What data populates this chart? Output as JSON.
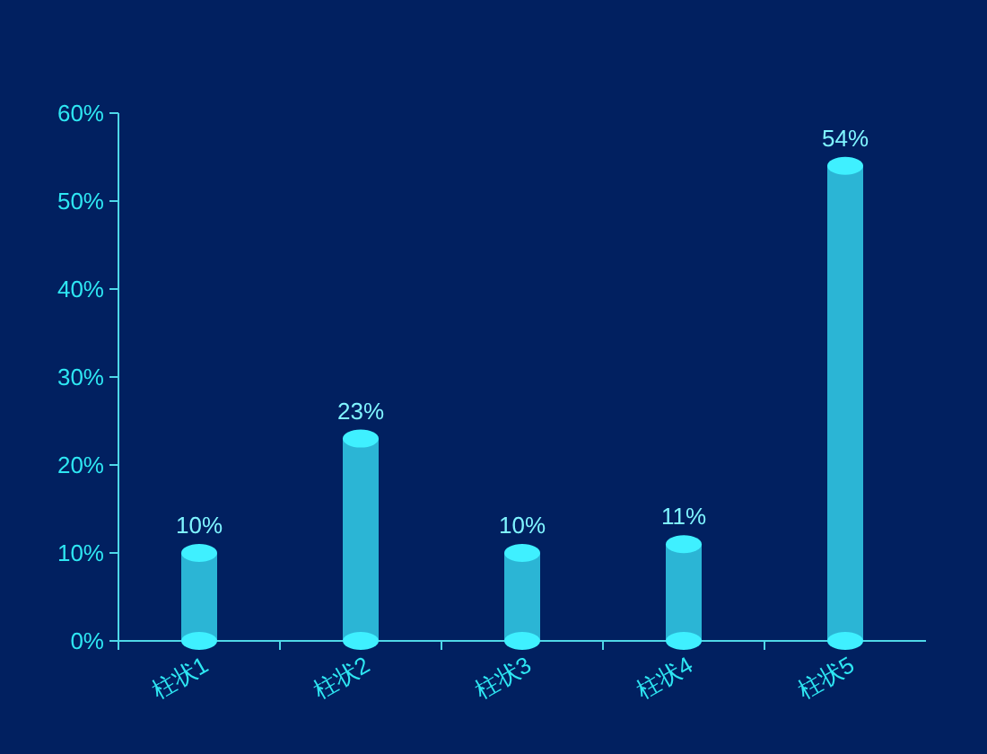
{
  "chart_data": {
    "type": "bar",
    "categories": [
      "柱状1",
      "柱状2",
      "柱状3",
      "柱状4",
      "柱状5"
    ],
    "values": [
      10,
      23,
      10,
      11,
      54
    ],
    "value_labels": [
      "10%",
      "23%",
      "10%",
      "11%",
      "54%"
    ],
    "color": "#2bb5d5",
    "ylim": [
      0,
      60
    ],
    "yticks": [
      {
        "value": 0,
        "label": "0%"
      },
      {
        "value": 10,
        "label": "10%"
      },
      {
        "value": 20,
        "label": "20%"
      },
      {
        "value": 30,
        "label": "30%"
      },
      {
        "value": 40,
        "label": "40%"
      },
      {
        "value": 50,
        "label": "50%"
      },
      {
        "value": 60,
        "label": "60%"
      }
    ],
    "grid": false
  }
}
